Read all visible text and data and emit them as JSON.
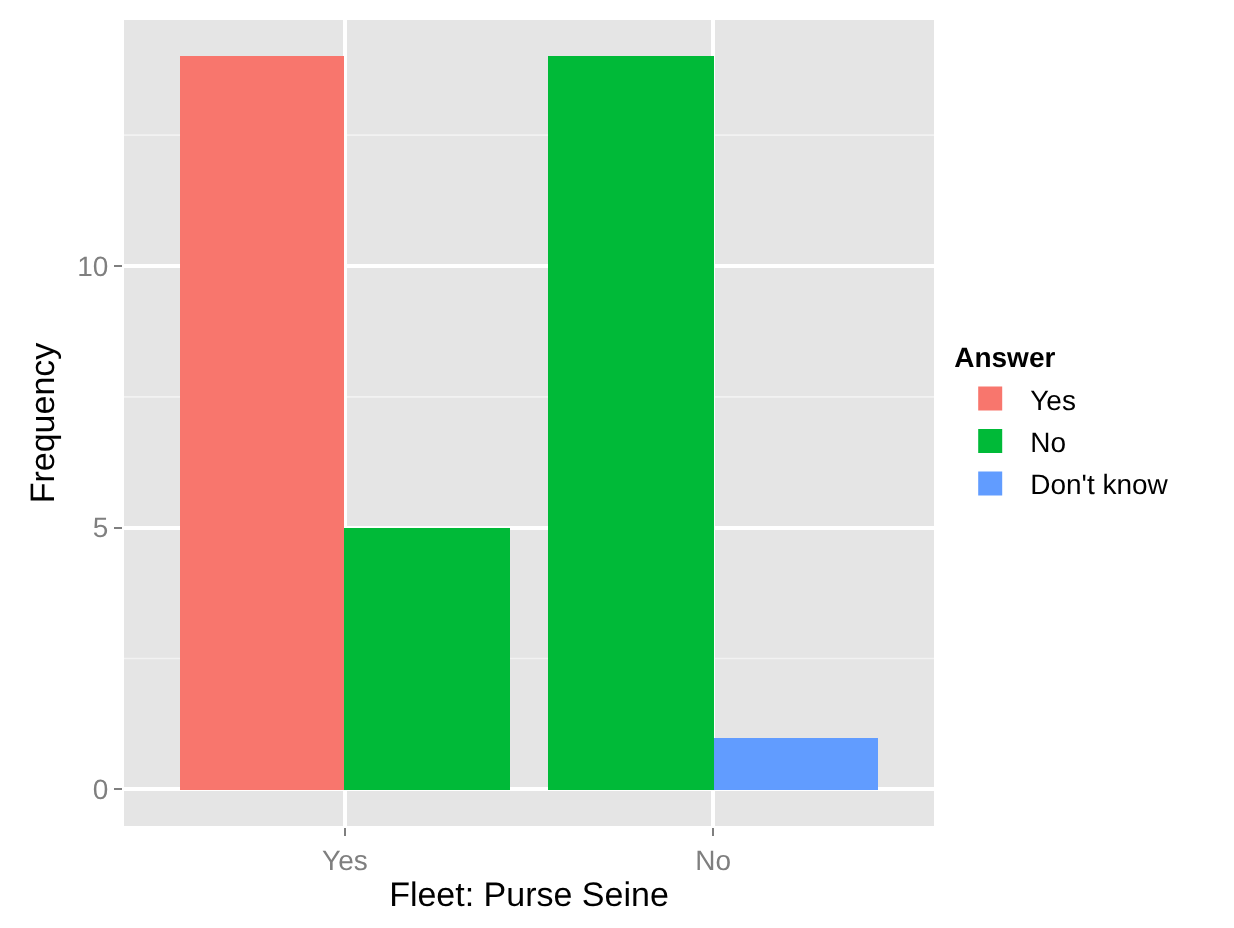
{
  "chart_data": {
    "type": "bar",
    "xlabel": "Fleet: Purse Seine",
    "ylabel": "Frequency",
    "legend_title": "Answer",
    "categories": [
      "Yes",
      "No"
    ],
    "series": [
      {
        "name": "Yes",
        "color": "#f8766d",
        "values": [
          14,
          null
        ]
      },
      {
        "name": "No",
        "color": "#00ba38",
        "values": [
          5,
          14
        ]
      },
      {
        "name": "Don't know",
        "color": "#619cff",
        "values": [
          null,
          1
        ]
      }
    ],
    "ylim": [
      -0.7,
      14.7
    ],
    "yticks": [
      0,
      5,
      10
    ],
    "grid": true,
    "legend": "right"
  }
}
